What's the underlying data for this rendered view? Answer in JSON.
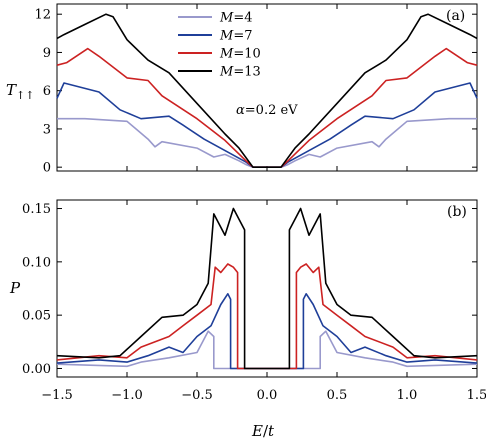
{
  "chart_data": [
    {
      "type": "line",
      "panel_label": "(a)",
      "ylabel_main": "T",
      "ylabel_sub": "↑↑",
      "annotation_alpha": "α",
      "annotation_value": "=0.2 eV",
      "xlim": [
        -1.5,
        1.5
      ],
      "ylim": [
        -0.3,
        12.8
      ],
      "yticks": [
        0,
        3,
        6,
        9,
        12
      ],
      "ytick_labels": [
        "0",
        "3",
        "6",
        "9",
        "12"
      ],
      "legend_position": "top-center",
      "series": [
        {
          "name": "4",
          "name_prefix": "M",
          "color": "#9999cc",
          "x": [
            -1.5,
            -1.3,
            -1.0,
            -0.85,
            -0.8,
            -0.75,
            -0.5,
            -0.38,
            -0.3,
            -0.2,
            -0.15,
            -0.1,
            0.1,
            0.15,
            0.2,
            0.3,
            0.38,
            0.5,
            0.75,
            0.8,
            0.85,
            1.0,
            1.3,
            1.5
          ],
          "y": [
            3.8,
            3.8,
            3.6,
            2.2,
            1.6,
            2.0,
            1.5,
            0.8,
            1.0,
            0.5,
            0.2,
            0.0,
            0.0,
            0.2,
            0.5,
            1.0,
            0.8,
            1.5,
            2.0,
            1.6,
            2.2,
            3.6,
            3.8,
            3.8
          ]
        },
        {
          "name": "7",
          "name_prefix": "M",
          "color": "#1f3f99",
          "x": [
            -1.5,
            -1.45,
            -1.2,
            -1.05,
            -0.9,
            -0.7,
            -0.6,
            -0.45,
            -0.3,
            -0.15,
            -0.1,
            0.1,
            0.15,
            0.3,
            0.45,
            0.6,
            0.7,
            0.9,
            1.05,
            1.2,
            1.45,
            1.5
          ],
          "y": [
            5.4,
            6.6,
            5.9,
            4.5,
            3.8,
            4.0,
            3.3,
            2.2,
            1.3,
            0.4,
            0.0,
            0.0,
            0.4,
            1.3,
            2.2,
            3.3,
            4.0,
            3.8,
            4.5,
            5.9,
            6.6,
            5.4
          ]
        },
        {
          "name": "10",
          "name_prefix": "M",
          "color": "#cc2222",
          "x": [
            -1.5,
            -1.43,
            -1.28,
            -1.2,
            -1.0,
            -0.85,
            -0.75,
            -0.5,
            -0.3,
            -0.15,
            -0.1,
            0.1,
            0.15,
            0.3,
            0.5,
            0.75,
            0.85,
            1.0,
            1.2,
            1.28,
            1.43,
            1.5
          ],
          "y": [
            8.0,
            8.2,
            9.3,
            8.7,
            7.0,
            6.8,
            5.6,
            3.8,
            2.1,
            0.5,
            0.0,
            0.0,
            0.5,
            2.1,
            3.8,
            5.6,
            6.8,
            7.0,
            8.7,
            9.3,
            8.2,
            8.0
          ]
        },
        {
          "name": "13",
          "name_prefix": "M",
          "color": "#000000",
          "x": [
            -1.5,
            -1.45,
            -1.3,
            -1.15,
            -1.1,
            -1.0,
            -0.85,
            -0.7,
            -0.5,
            -0.3,
            -0.2,
            -0.1,
            0.1,
            0.2,
            0.3,
            0.5,
            0.7,
            0.85,
            1.0,
            1.1,
            1.15,
            1.3,
            1.45,
            1.5
          ],
          "y": [
            10.1,
            10.4,
            11.2,
            12.0,
            11.8,
            10.0,
            8.4,
            7.4,
            5.0,
            2.6,
            1.5,
            0.0,
            0.0,
            1.5,
            2.6,
            5.0,
            7.4,
            8.4,
            10.0,
            11.8,
            12.0,
            11.2,
            10.4,
            10.1
          ]
        }
      ]
    },
    {
      "type": "line",
      "panel_label": "(b)",
      "xlabel_main": "E",
      "xlabel_sep": "/",
      "xlabel_den": "t",
      "ylabel": "P",
      "xlim": [
        -1.5,
        1.5
      ],
      "ylim": [
        -0.008,
        0.158
      ],
      "xticks": [
        -1.5,
        -1.0,
        -0.5,
        0.0,
        0.5,
        1.0,
        1.5
      ],
      "xtick_labels": [
        "−1.5",
        "−1.0",
        "−0.5",
        "0.0",
        "0.5",
        "1.0",
        "1.5"
      ],
      "yticks": [
        0.0,
        0.05,
        0.1,
        0.15
      ],
      "ytick_labels": [
        "0.00",
        "0.05",
        "0.10",
        "0.15"
      ],
      "series": [
        {
          "name": "4",
          "color": "#9999cc",
          "x": [
            -1.5,
            -1.0,
            -0.9,
            -0.7,
            -0.5,
            -0.42,
            -0.38,
            -0.38,
            0.38,
            0.38,
            0.42,
            0.5,
            0.7,
            0.9,
            1.0,
            1.5
          ],
          "y": [
            0.004,
            0.002,
            0.006,
            0.01,
            0.015,
            0.035,
            0.03,
            0.0,
            0.0,
            0.03,
            0.035,
            0.015,
            0.01,
            0.006,
            0.002,
            0.004
          ]
        },
        {
          "name": "7",
          "color": "#1f3f99",
          "x": [
            -1.5,
            -1.2,
            -1.0,
            -0.85,
            -0.7,
            -0.6,
            -0.5,
            -0.4,
            -0.33,
            -0.28,
            -0.26,
            -0.26,
            0.26,
            0.26,
            0.28,
            0.33,
            0.4,
            0.5,
            0.6,
            0.7,
            0.85,
            1.0,
            1.2,
            1.5
          ],
          "y": [
            0.005,
            0.008,
            0.006,
            0.012,
            0.02,
            0.015,
            0.03,
            0.04,
            0.06,
            0.07,
            0.065,
            0.0,
            0.0,
            0.065,
            0.07,
            0.06,
            0.04,
            0.03,
            0.015,
            0.02,
            0.012,
            0.006,
            0.008,
            0.005
          ]
        },
        {
          "name": "10",
          "color": "#cc2222",
          "x": [
            -1.5,
            -1.2,
            -1.0,
            -0.9,
            -0.7,
            -0.6,
            -0.5,
            -0.4,
            -0.37,
            -0.33,
            -0.28,
            -0.24,
            -0.21,
            -0.21,
            0.21,
            0.21,
            0.24,
            0.28,
            0.33,
            0.37,
            0.4,
            0.5,
            0.6,
            0.7,
            0.9,
            1.0,
            1.2,
            1.5
          ],
          "y": [
            0.008,
            0.012,
            0.01,
            0.02,
            0.03,
            0.04,
            0.05,
            0.06,
            0.095,
            0.09,
            0.098,
            0.095,
            0.09,
            0.0,
            0.0,
            0.09,
            0.095,
            0.098,
            0.09,
            0.095,
            0.06,
            0.05,
            0.04,
            0.03,
            0.02,
            0.01,
            0.012,
            0.008
          ]
        },
        {
          "name": "13",
          "color": "#000000",
          "x": [
            -1.5,
            -1.2,
            -1.05,
            -0.9,
            -0.75,
            -0.6,
            -0.5,
            -0.42,
            -0.38,
            -0.3,
            -0.24,
            -0.2,
            -0.16,
            -0.16,
            0.16,
            0.16,
            0.2,
            0.24,
            0.3,
            0.38,
            0.42,
            0.5,
            0.6,
            0.75,
            0.9,
            1.05,
            1.2,
            1.5
          ],
          "y": [
            0.012,
            0.01,
            0.012,
            0.03,
            0.048,
            0.05,
            0.06,
            0.08,
            0.145,
            0.125,
            0.15,
            0.14,
            0.13,
            0.0,
            0.0,
            0.13,
            0.14,
            0.15,
            0.125,
            0.145,
            0.08,
            0.06,
            0.05,
            0.048,
            0.03,
            0.012,
            0.01,
            0.012
          ]
        }
      ]
    }
  ]
}
